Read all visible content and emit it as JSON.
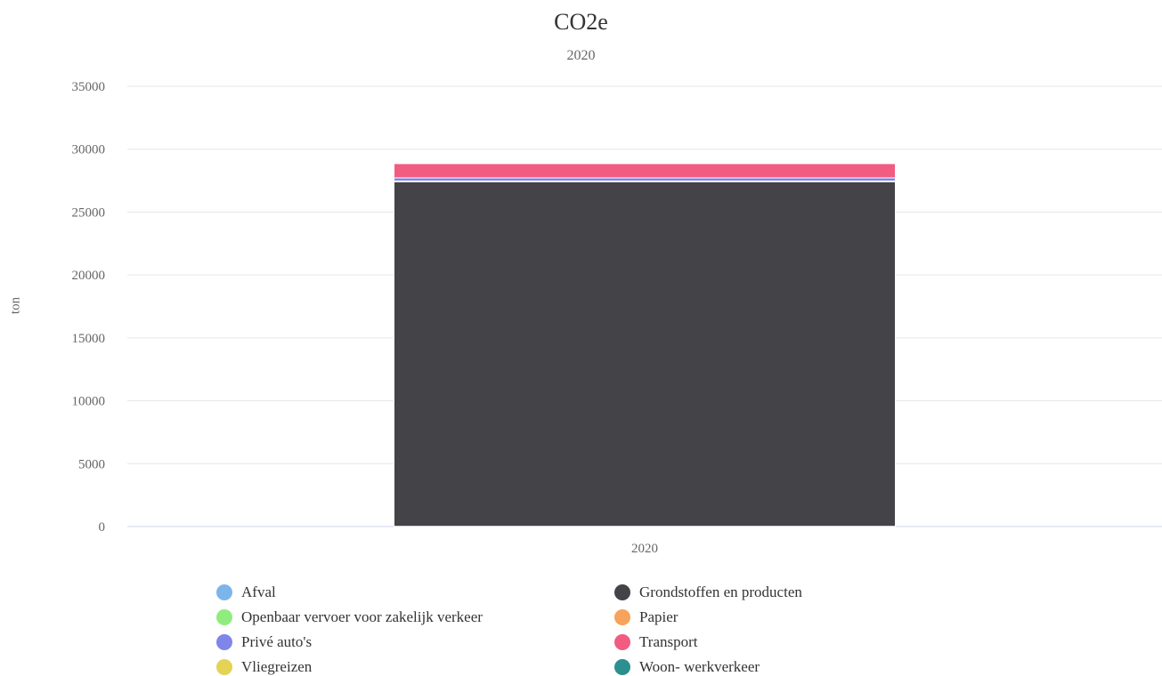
{
  "chart_data": {
    "type": "bar",
    "stacked": true,
    "title": "CO2e",
    "subtitle": "2020",
    "ylabel": "ton",
    "xlabel": "",
    "categories": [
      "2020"
    ],
    "ylim": [
      0,
      35000
    ],
    "yticks": [
      0,
      5000,
      10000,
      15000,
      20000,
      25000,
      30000,
      35000
    ],
    "grid": true,
    "legend_position": "bottom",
    "series": [
      {
        "name": "Afval",
        "color": "#7cb5ec",
        "values": [
          20
        ]
      },
      {
        "name": "Grondstoffen en producten",
        "color": "#434348",
        "values": [
          27400
        ]
      },
      {
        "name": "Openbaar vervoer voor zakelijk verkeer",
        "color": "#90ed7d",
        "values": [
          20
        ]
      },
      {
        "name": "Papier",
        "color": "#f7a35c",
        "values": [
          30
        ]
      },
      {
        "name": "Privé auto's",
        "color": "#8085e9",
        "values": [
          250
        ]
      },
      {
        "name": "Transport",
        "color": "#f15c80",
        "values": [
          1150
        ]
      },
      {
        "name": "Vliegreizen",
        "color": "#e4d354",
        "values": [
          20
        ]
      },
      {
        "name": "Woon- werkverkeer",
        "color": "#2b908f",
        "values": [
          20
        ]
      }
    ]
  }
}
